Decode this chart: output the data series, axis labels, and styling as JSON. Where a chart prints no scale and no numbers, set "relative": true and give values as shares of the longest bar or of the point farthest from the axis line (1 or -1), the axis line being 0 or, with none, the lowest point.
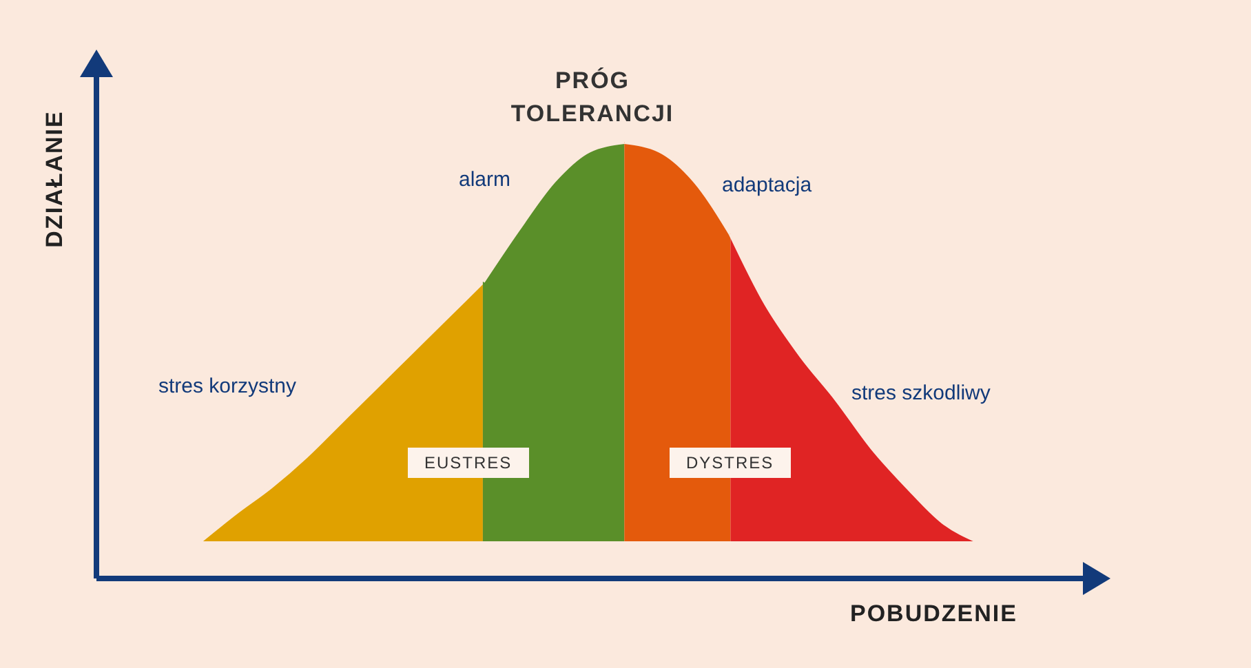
{
  "chart_data": {
    "type": "area",
    "relative": true,
    "xlabel": "POBUDZENIE",
    "ylabel": "DZIAŁANIE",
    "title": "PRÓG TOLERANCJI",
    "categories": [
      null,
      null,
      null,
      null,
      null,
      null,
      null,
      null,
      null,
      null,
      null,
      null,
      null,
      null,
      null,
      null,
      null,
      null,
      null,
      null,
      null,
      null,
      null
    ],
    "series": [
      {
        "color": "#e0a100",
        "values": [
          0.085,
          0.15,
          0.21,
          0.28,
          0.36,
          0.44,
          0.52,
          0.6,
          0.68,
          null,
          null,
          null,
          null,
          null,
          null,
          null,
          null,
          null,
          null,
          null,
          null,
          null,
          null
        ]
      },
      {
        "color": "#5a8f29",
        "values": [
          null,
          null,
          null,
          null,
          null,
          null,
          null,
          null,
          0.68,
          0.8,
          0.91,
          0.98,
          1,
          null,
          null,
          null,
          null,
          null,
          null,
          null,
          null,
          null,
          null
        ]
      },
      {
        "color": "#e45a0c",
        "values": [
          null,
          null,
          null,
          null,
          null,
          null,
          null,
          null,
          null,
          null,
          null,
          null,
          1,
          0.98,
          0.91,
          0.79,
          null,
          null,
          null,
          null,
          null,
          null,
          null
        ]
      },
      {
        "color": "#e02424",
        "values": [
          null,
          null,
          null,
          null,
          null,
          null,
          null,
          null,
          null,
          null,
          null,
          null,
          null,
          null,
          null,
          0.79,
          0.63,
          0.51,
          0.41,
          0.3,
          0.21,
          0.13,
          0.085
        ]
      }
    ],
    "annotations": [
      "stres korzystny",
      "alarm",
      "adaptacja",
      "stres szkodliwy",
      "EUSTRES",
      "DYSTRES"
    ],
    "legend": false,
    "grid": false
  }
}
